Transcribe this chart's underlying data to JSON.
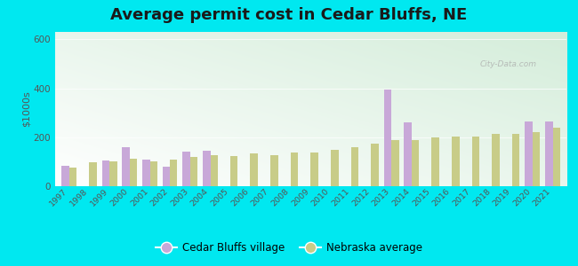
{
  "title": "Average permit cost in Cedar Bluffs, NE",
  "ylabel": "$1000s",
  "years": [
    1997,
    1998,
    1999,
    2000,
    2001,
    2002,
    2003,
    2004,
    2005,
    2006,
    2007,
    2008,
    2009,
    2010,
    2011,
    2012,
    2013,
    2014,
    2015,
    2016,
    2017,
    2018,
    2019,
    2020,
    2021
  ],
  "cedar_bluffs": [
    85,
    0,
    105,
    160,
    110,
    80,
    140,
    145,
    0,
    0,
    0,
    0,
    0,
    0,
    0,
    0,
    395,
    260,
    0,
    0,
    0,
    0,
    0,
    265,
    265
  ],
  "nebraska_avg": [
    75,
    98,
    103,
    112,
    100,
    107,
    118,
    128,
    123,
    133,
    128,
    138,
    138,
    148,
    158,
    172,
    188,
    190,
    198,
    203,
    203,
    212,
    212,
    222,
    238
  ],
  "cedar_color": "#c8a8d8",
  "nebraska_color": "#c8cc88",
  "background_outer": "#00e8f0",
  "ylim": [
    0,
    630
  ],
  "yticks": [
    0,
    200,
    400,
    600
  ],
  "title_fontsize": 13,
  "legend_labels": [
    "Cedar Bluffs village",
    "Nebraska average"
  ]
}
